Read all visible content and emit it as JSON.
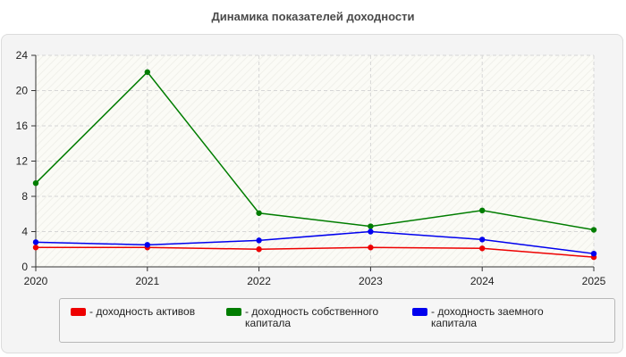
{
  "chart_data": {
    "type": "line",
    "title": "Динамика показателей доходности",
    "x": [
      "2020",
      "2021",
      "2022",
      "2023",
      "2024",
      "2025"
    ],
    "ylim": [
      0,
      24
    ],
    "yticks": [
      0,
      4,
      8,
      12,
      16,
      20,
      24
    ],
    "grid": true,
    "legend_position": "bottom",
    "series": [
      {
        "name": "- доходность активов",
        "color": "#ee0000",
        "values": [
          2.2,
          2.2,
          2.0,
          2.2,
          2.1,
          1.1
        ]
      },
      {
        "name": "- доходность собственного капитала",
        "color": "#007d00",
        "values": [
          9.5,
          22.1,
          6.1,
          4.6,
          6.4,
          4.2
        ]
      },
      {
        "name": "- доходность заемного капитала",
        "color": "#0000ee",
        "values": [
          2.8,
          2.5,
          3.0,
          4.0,
          3.1,
          1.5
        ]
      }
    ]
  }
}
